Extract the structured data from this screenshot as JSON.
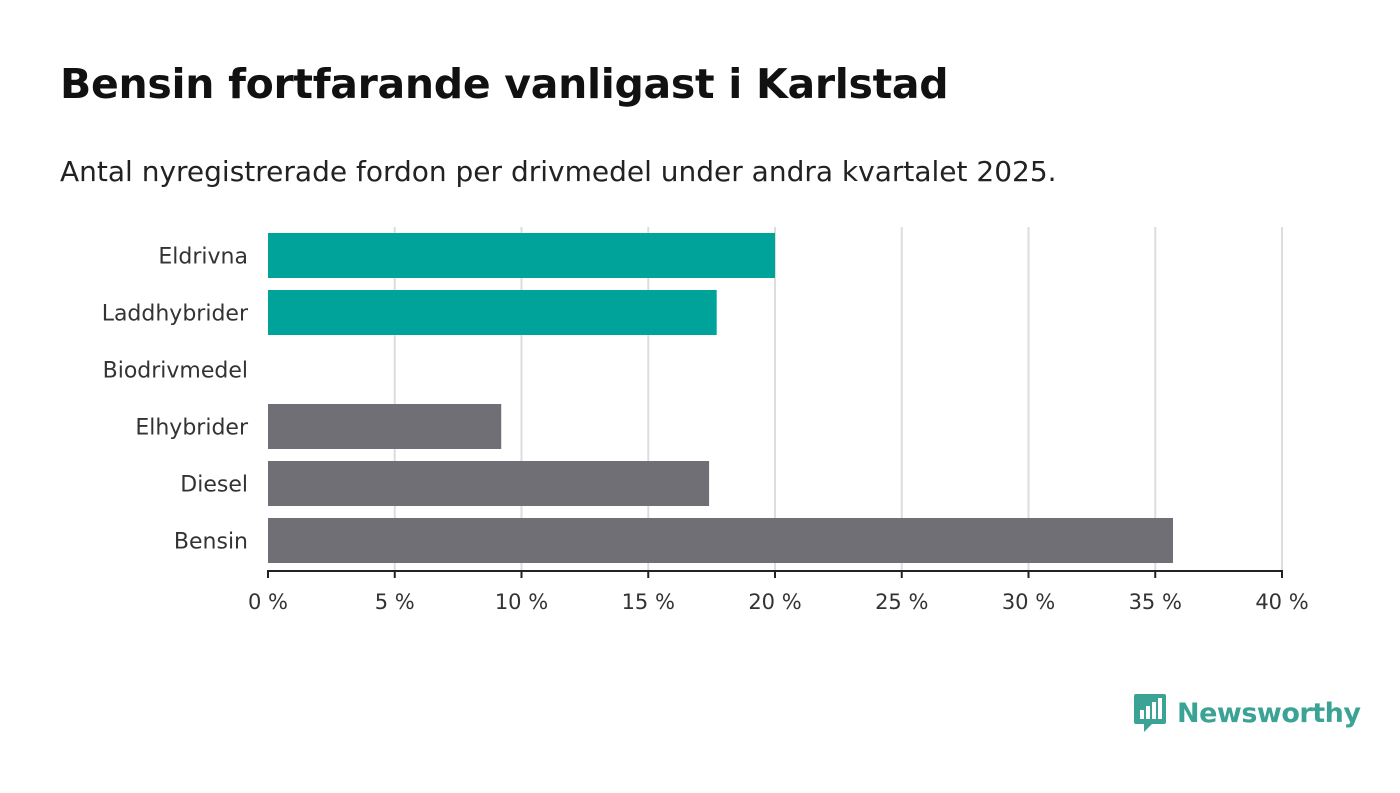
{
  "title": "Bensin fortfarande vanligast i Karlstad",
  "subtitle": "Antal nyregistrerade fordon per drivmedel under andra kvartalet 2025.",
  "brand": {
    "name": "Newsworthy",
    "icon": "newsworthy-logo-icon"
  },
  "colors": {
    "highlight": "#00a39a",
    "base": "#706f75",
    "grid": "#dddddd",
    "axis": "#222222"
  },
  "chart_data": {
    "type": "bar",
    "orientation": "horizontal",
    "categories": [
      "Eldrivna",
      "Laddhybrider",
      "Biodrivmedel",
      "Elhybrider",
      "Diesel",
      "Bensin"
    ],
    "values": [
      20.0,
      17.7,
      0,
      9.2,
      17.4,
      35.7
    ],
    "highlighted": [
      true,
      true,
      false,
      false,
      false,
      false
    ],
    "xlim": [
      0,
      40
    ],
    "xticks": [
      0,
      5,
      10,
      15,
      20,
      25,
      30,
      35,
      40
    ],
    "tick_labels": [
      "0 %",
      "5 %",
      "10 %",
      "15 %",
      "20 %",
      "25 %",
      "30 %",
      "35 %",
      "40 %"
    ],
    "grid": true,
    "legend": "none"
  }
}
